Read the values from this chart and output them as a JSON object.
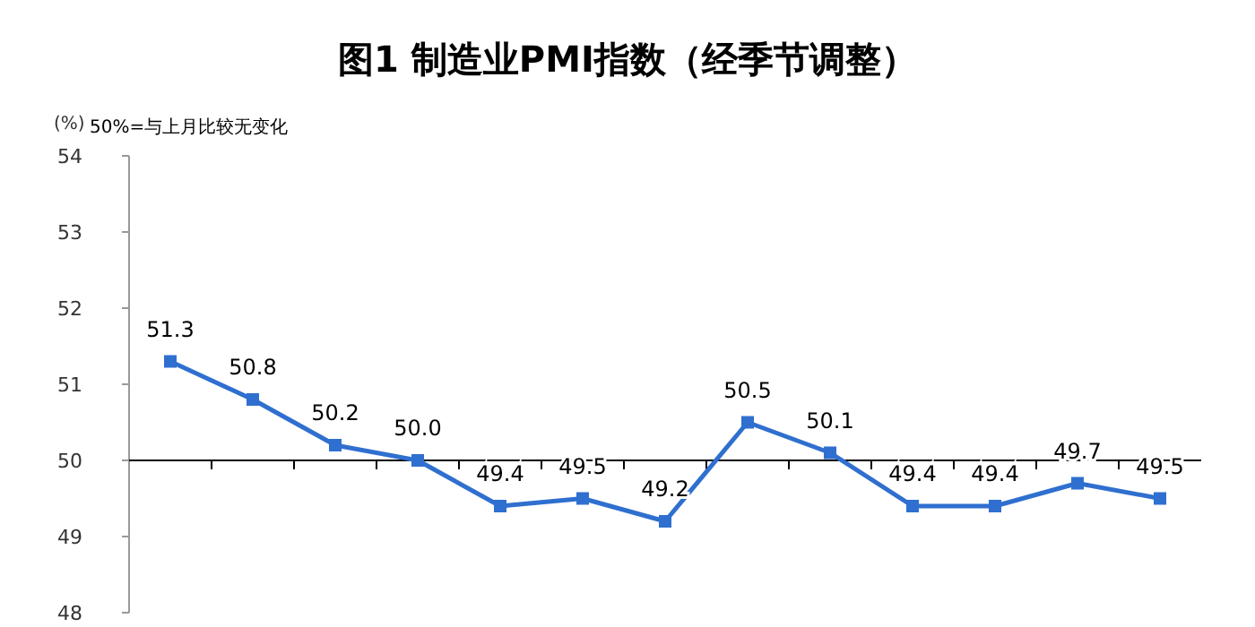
{
  "chart_data": {
    "type": "line",
    "title": "图1  制造业PMI指数（经季节调整）",
    "ylabel": "(%)",
    "annotations": [
      "50%=与上月比较无变化"
    ],
    "categories": [
      null,
      null,
      null,
      null,
      null,
      null,
      null,
      null,
      null,
      null,
      null,
      null,
      null
    ],
    "series": [
      {
        "color": "#2f6fcf",
        "values": [
          51.3,
          50.8,
          50.2,
          50.0,
          49.4,
          49.5,
          49.2,
          50.5,
          50.1,
          49.4,
          49.4,
          49.7,
          49.5
        ]
      }
    ],
    "value_labels": [
      "51.3",
      "50.8",
      "50.2",
      "50.0",
      "49.4",
      "49.5",
      "49.2",
      "50.5",
      "50.1",
      "49.4",
      "49.4",
      "49.7",
      "49.5"
    ],
    "ylim": [
      48,
      54
    ],
    "yticks": [
      48,
      49,
      50,
      51,
      52,
      53,
      54
    ],
    "ref_lines": [
      {
        "axis": "y",
        "value": 50,
        "color": "#000000"
      }
    ],
    "marker": "square"
  }
}
